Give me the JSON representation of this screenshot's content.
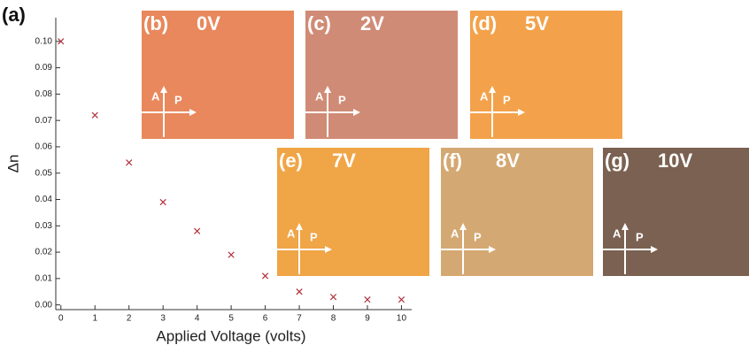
{
  "chart_data": {
    "type": "scatter",
    "panel_label": "(a)",
    "xlabel": "Applied Voltage (volts)",
    "ylabel": "Δn",
    "xlim": [
      -0.15,
      10.3
    ],
    "ylim": [
      -0.0018,
      0.109
    ],
    "xticks": [
      0,
      1,
      2,
      3,
      4,
      5,
      6,
      7,
      8,
      9,
      10
    ],
    "yticks": [
      {
        "value": 0,
        "label": "0.00"
      },
      {
        "value": 0.01,
        "label": "0.01"
      },
      {
        "value": 0.02,
        "label": "0.02"
      },
      {
        "value": 0.03,
        "label": "0.03"
      },
      {
        "value": 0.04,
        "label": "0.04"
      },
      {
        "value": 0.05,
        "label": "0.05"
      },
      {
        "value": 0.06,
        "label": "0.06"
      },
      {
        "value": 0.07,
        "label": "0.07"
      },
      {
        "value": 0.08,
        "label": "0.08"
      },
      {
        "value": 0.09,
        "label": "0.09"
      },
      {
        "value": 0.1,
        "label": "0.10"
      }
    ],
    "series": [
      {
        "color": "#b0303c",
        "x": [
          0,
          1,
          2,
          3,
          4,
          5,
          6,
          7,
          8,
          9,
          10
        ],
        "values": [
          0.1,
          0.072,
          0.054,
          0.039,
          0.028,
          0.019,
          0.011,
          0.005,
          0.003,
          0.002,
          0.002
        ]
      }
    ],
    "analyzer_label": "A",
    "polarizer_label": "P",
    "insets": [
      {
        "label": "(b)",
        "voltage": "0V",
        "color": "#e8885c"
      },
      {
        "label": "(c)",
        "voltage": "2V",
        "color": "#d08b76"
      },
      {
        "label": "(d)",
        "voltage": "5V",
        "color": "#f3a24b"
      },
      {
        "label": "(e)",
        "voltage": "7V",
        "color": "#f0a546"
      },
      {
        "label": "(f)",
        "voltage": "8V",
        "color": "#d4a872"
      },
      {
        "label": "(g)",
        "voltage": "10V",
        "color": "#7b6151"
      }
    ]
  }
}
